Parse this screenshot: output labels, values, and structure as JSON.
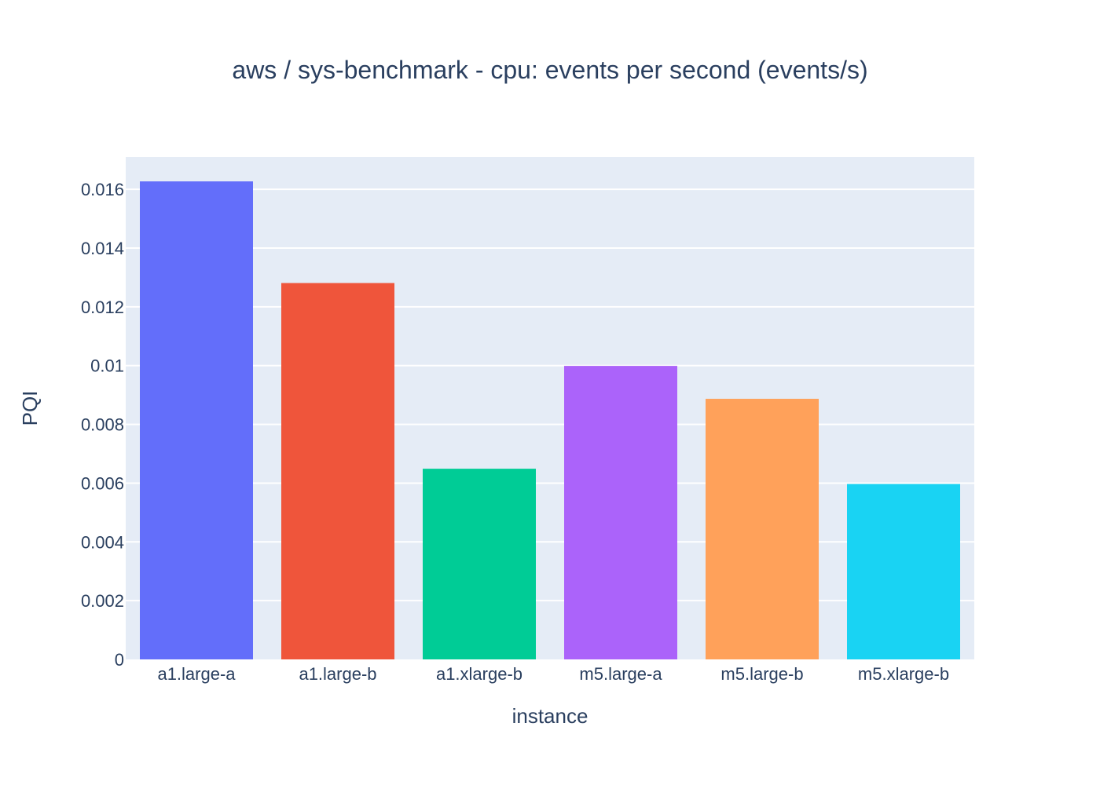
{
  "chart_data": {
    "type": "bar",
    "title": "aws / sys-benchmark - cpu: events per second (events/s)",
    "xlabel": "instance",
    "ylabel": "PQI",
    "categories": [
      "a1.large-a",
      "a1.large-b",
      "a1.xlarge-b",
      "m5.large-a",
      "m5.large-b",
      "m5.xlarge-b"
    ],
    "values": [
      0.01627,
      0.01281,
      0.00649,
      0.00999,
      0.00887,
      0.00597
    ],
    "colors": [
      "#636efa",
      "#ef553b",
      "#00cc96",
      "#ab63fa",
      "#ffa15a",
      "#19d3f3"
    ],
    "ylim": [
      0,
      0.0171
    ],
    "yticks": [
      0,
      0.002,
      0.004,
      0.006,
      0.008,
      0.01,
      0.012,
      0.014,
      0.016
    ],
    "ytick_labels": [
      "0",
      "0.002",
      "0.004",
      "0.006",
      "0.008",
      "0.01",
      "0.012",
      "0.014",
      "0.016"
    ],
    "grid": true,
    "legend": "none",
    "plot_background": "#e5ecf6",
    "text_color": "#2a3f5f"
  }
}
